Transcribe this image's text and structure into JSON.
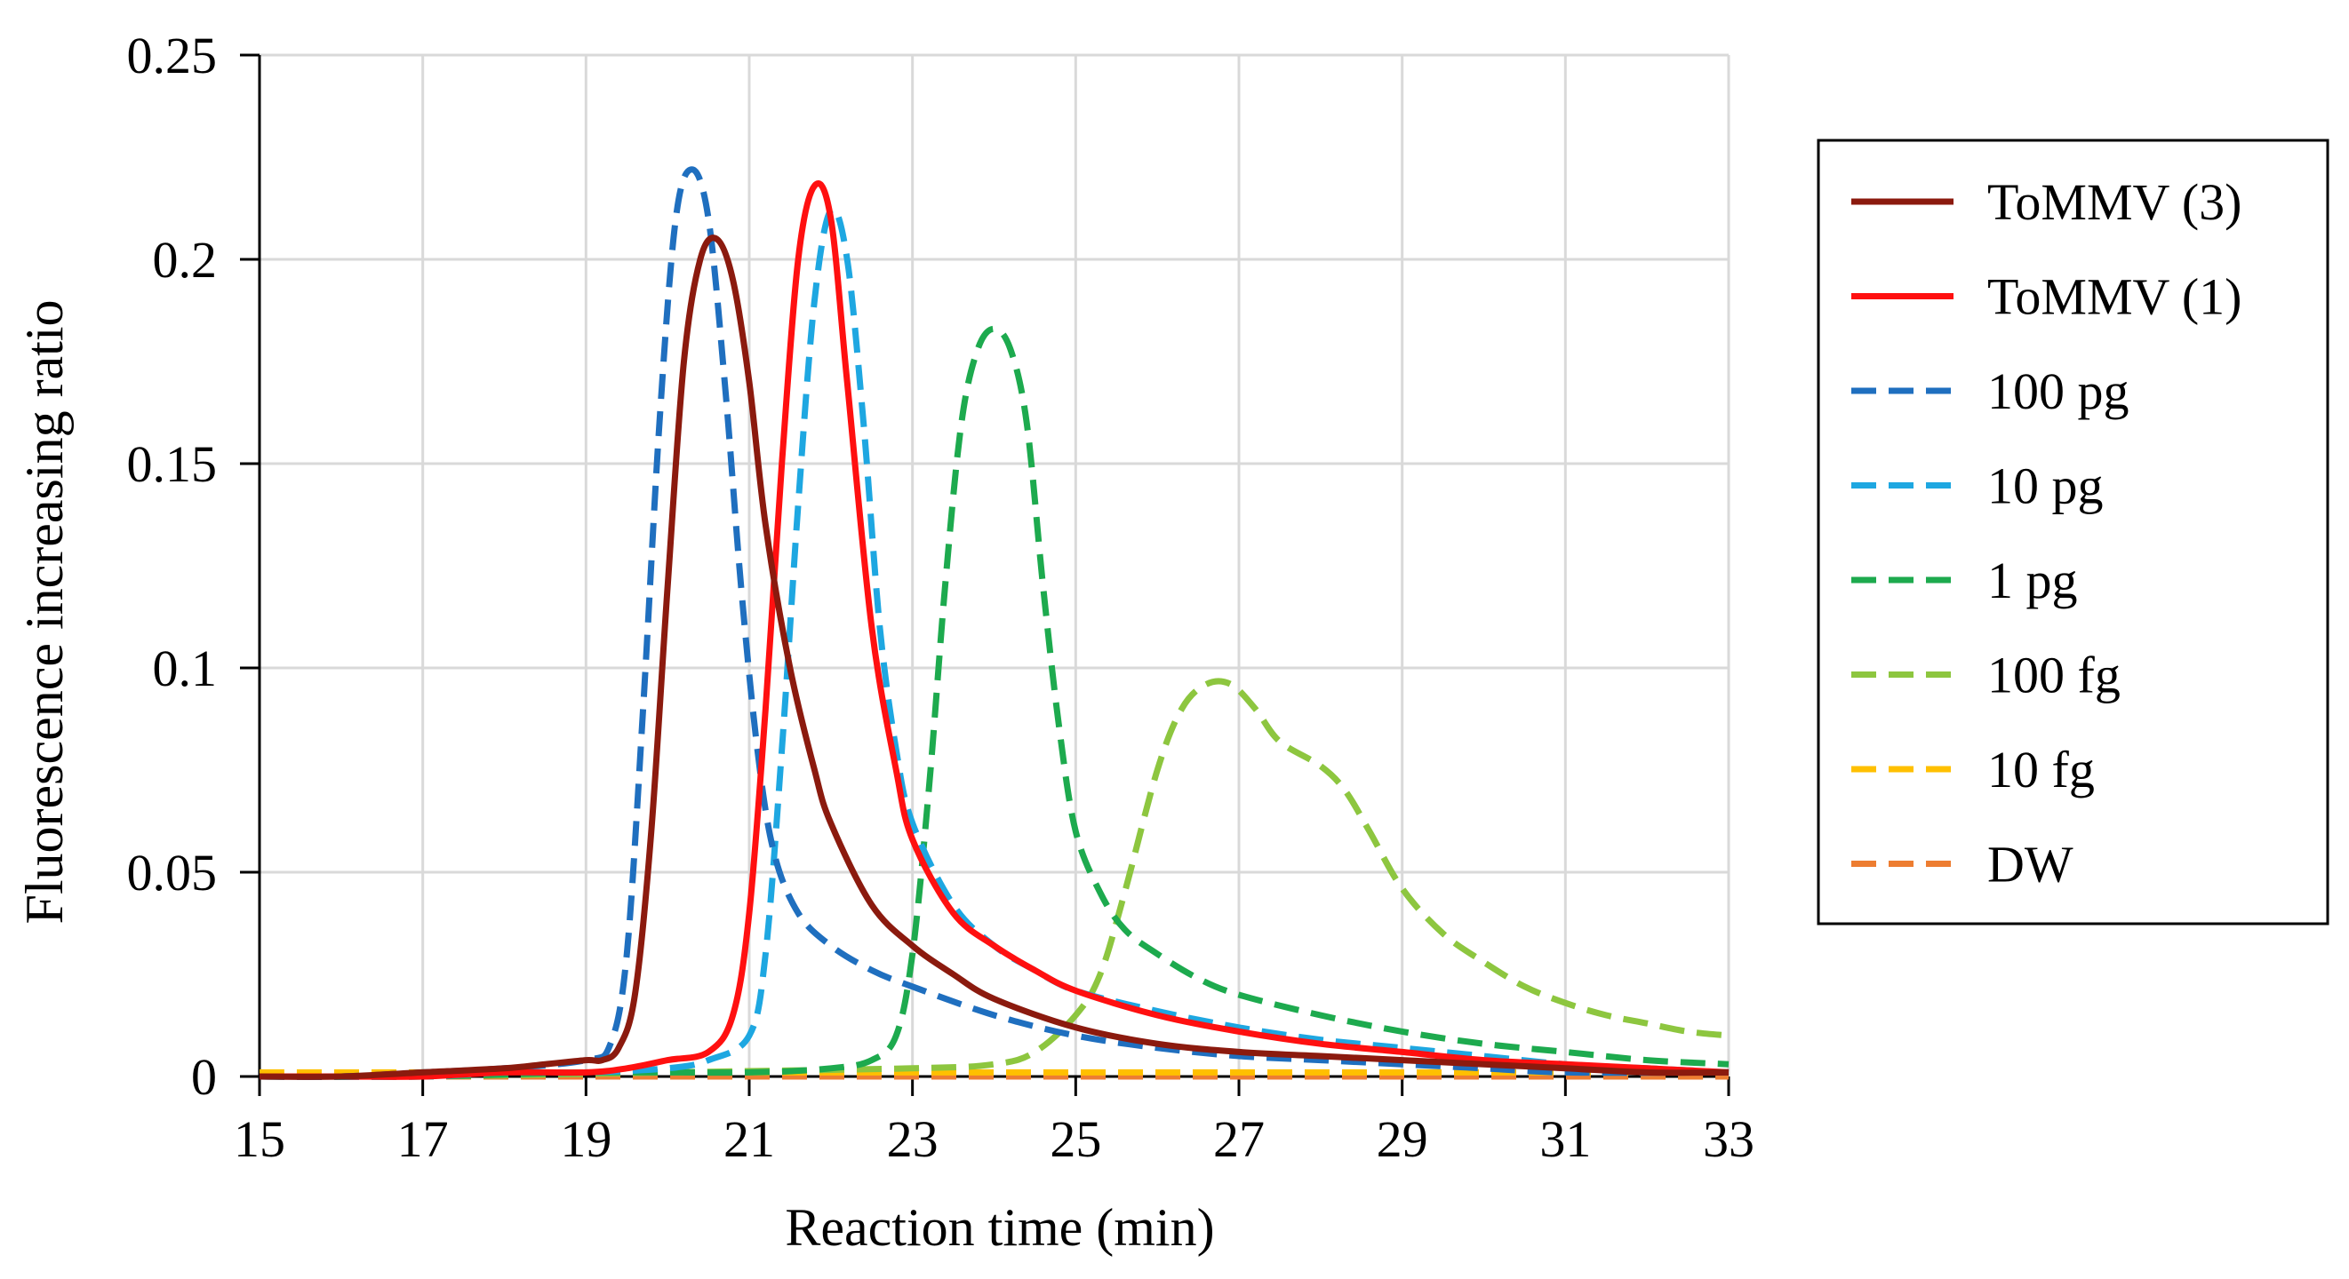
{
  "chart_data": {
    "type": "line",
    "title": "",
    "xlabel": "Reaction time (min)",
    "ylabel": "Fluorescence increasing ratio",
    "xlim": [
      15,
      33
    ],
    "ylim": [
      0,
      0.25
    ],
    "x_ticks": [
      15,
      17,
      19,
      21,
      23,
      25,
      27,
      29,
      31,
      33
    ],
    "x_tick_labels": [
      "15",
      "17",
      "19",
      "21",
      "23",
      "25",
      "27",
      "29",
      "31",
      "33"
    ],
    "y_ticks": [
      0,
      0.05,
      0.1,
      0.15,
      0.2,
      0.25
    ],
    "y_tick_labels": [
      "0",
      "0.05",
      "0.1",
      "0.15",
      "0.2",
      "0.25"
    ],
    "grid": true,
    "legend_position": "right",
    "series": [
      {
        "name": "ToMMV (3)",
        "color": "#8B1A0E",
        "style": "solid",
        "points": [
          [
            15,
            0
          ],
          [
            16,
            0
          ],
          [
            17,
            0.001
          ],
          [
            18,
            0.002
          ],
          [
            18.5,
            0.003
          ],
          [
            19,
            0.004
          ],
          [
            19.2,
            0.004
          ],
          [
            19.4,
            0.007
          ],
          [
            19.6,
            0.02
          ],
          [
            19.8,
            0.06
          ],
          [
            20,
            0.12
          ],
          [
            20.2,
            0.175
          ],
          [
            20.4,
            0.2
          ],
          [
            20.6,
            0.205
          ],
          [
            20.8,
            0.195
          ],
          [
            21,
            0.17
          ],
          [
            21.2,
            0.135
          ],
          [
            21.5,
            0.1
          ],
          [
            21.8,
            0.075
          ],
          [
            22,
            0.062
          ],
          [
            22.5,
            0.042
          ],
          [
            23,
            0.032
          ],
          [
            23.5,
            0.025
          ],
          [
            24,
            0.019
          ],
          [
            25,
            0.012
          ],
          [
            26,
            0.008
          ],
          [
            27,
            0.006
          ],
          [
            28,
            0.005
          ],
          [
            29,
            0.004
          ],
          [
            30,
            0.003
          ],
          [
            31,
            0.002
          ],
          [
            32,
            0.001
          ],
          [
            33,
            0.001
          ]
        ]
      },
      {
        "name": "ToMMV (1)",
        "color": "#FF1010",
        "style": "solid",
        "points": [
          [
            15,
            0
          ],
          [
            16,
            0
          ],
          [
            17,
            0
          ],
          [
            18,
            0.001
          ],
          [
            19,
            0.001
          ],
          [
            19.5,
            0.002
          ],
          [
            20,
            0.004
          ],
          [
            20.5,
            0.006
          ],
          [
            20.8,
            0.015
          ],
          [
            21,
            0.04
          ],
          [
            21.2,
            0.09
          ],
          [
            21.4,
            0.15
          ],
          [
            21.6,
            0.2
          ],
          [
            21.8,
            0.218
          ],
          [
            22,
            0.21
          ],
          [
            22.2,
            0.17
          ],
          [
            22.5,
            0.11
          ],
          [
            22.8,
            0.075
          ],
          [
            23,
            0.058
          ],
          [
            23.5,
            0.04
          ],
          [
            24,
            0.032
          ],
          [
            24.5,
            0.026
          ],
          [
            25,
            0.021
          ],
          [
            26,
            0.015
          ],
          [
            27,
            0.011
          ],
          [
            28,
            0.008
          ],
          [
            29,
            0.006
          ],
          [
            30,
            0.004
          ],
          [
            31,
            0.003
          ],
          [
            32,
            0.002
          ],
          [
            33,
            0.001
          ]
        ]
      },
      {
        "name": "100 pg",
        "color": "#1F6FBF",
        "style": "dashed",
        "points": [
          [
            15,
            0
          ],
          [
            16,
            0
          ],
          [
            17,
            0.001
          ],
          [
            18,
            0.002
          ],
          [
            19,
            0.004
          ],
          [
            19.3,
            0.008
          ],
          [
            19.5,
            0.03
          ],
          [
            19.7,
            0.09
          ],
          [
            19.9,
            0.16
          ],
          [
            20.1,
            0.21
          ],
          [
            20.3,
            0.222
          ],
          [
            20.5,
            0.21
          ],
          [
            20.7,
            0.17
          ],
          [
            20.9,
            0.12
          ],
          [
            21.1,
            0.08
          ],
          [
            21.3,
            0.055
          ],
          [
            21.6,
            0.04
          ],
          [
            22,
            0.032
          ],
          [
            22.5,
            0.026
          ],
          [
            23,
            0.022
          ],
          [
            24,
            0.015
          ],
          [
            25,
            0.01
          ],
          [
            26,
            0.007
          ],
          [
            27,
            0.005
          ],
          [
            28,
            0.004
          ],
          [
            29,
            0.003
          ],
          [
            30,
            0.002
          ],
          [
            31,
            0.001
          ],
          [
            33,
            0.001
          ]
        ]
      },
      {
        "name": "10 pg",
        "color": "#1EA7E1",
        "style": "dashed",
        "points": [
          [
            15,
            0
          ],
          [
            17,
            0
          ],
          [
            18,
            0.001
          ],
          [
            19,
            0.001
          ],
          [
            20,
            0.002
          ],
          [
            20.5,
            0.004
          ],
          [
            21,
            0.01
          ],
          [
            21.2,
            0.03
          ],
          [
            21.4,
            0.08
          ],
          [
            21.6,
            0.14
          ],
          [
            21.8,
            0.19
          ],
          [
            22,
            0.212
          ],
          [
            22.2,
            0.2
          ],
          [
            22.4,
            0.16
          ],
          [
            22.6,
            0.11
          ],
          [
            22.8,
            0.08
          ],
          [
            23,
            0.062
          ],
          [
            23.5,
            0.042
          ],
          [
            24,
            0.032
          ],
          [
            24.5,
            0.026
          ],
          [
            25,
            0.021
          ],
          [
            26,
            0.016
          ],
          [
            27,
            0.012
          ],
          [
            28,
            0.009
          ],
          [
            29,
            0.007
          ],
          [
            30,
            0.005
          ],
          [
            31,
            0.003
          ],
          [
            32,
            0.002
          ],
          [
            33,
            0.001
          ]
        ]
      },
      {
        "name": "1 pg",
        "color": "#1DAA4E",
        "style": "dashed",
        "points": [
          [
            15,
            0
          ],
          [
            17,
            0
          ],
          [
            19,
            0.001
          ],
          [
            21,
            0.001
          ],
          [
            22,
            0.002
          ],
          [
            22.5,
            0.004
          ],
          [
            22.8,
            0.01
          ],
          [
            23,
            0.03
          ],
          [
            23.2,
            0.07
          ],
          [
            23.4,
            0.12
          ],
          [
            23.6,
            0.16
          ],
          [
            23.8,
            0.178
          ],
          [
            24,
            0.183
          ],
          [
            24.2,
            0.178
          ],
          [
            24.4,
            0.16
          ],
          [
            24.6,
            0.12
          ],
          [
            24.8,
            0.085
          ],
          [
            25,
            0.06
          ],
          [
            25.3,
            0.045
          ],
          [
            25.6,
            0.036
          ],
          [
            26,
            0.03
          ],
          [
            26.5,
            0.024
          ],
          [
            27,
            0.02
          ],
          [
            28,
            0.015
          ],
          [
            29,
            0.011
          ],
          [
            30,
            0.008
          ],
          [
            31,
            0.006
          ],
          [
            32,
            0.004
          ],
          [
            33,
            0.003
          ]
        ]
      },
      {
        "name": "100 fg",
        "color": "#8DC63F",
        "style": "dashed",
        "points": [
          [
            15,
            0
          ],
          [
            17,
            0
          ],
          [
            20,
            0.001
          ],
          [
            23,
            0.002
          ],
          [
            24,
            0.003
          ],
          [
            24.5,
            0.006
          ],
          [
            25,
            0.015
          ],
          [
            25.3,
            0.025
          ],
          [
            25.6,
            0.045
          ],
          [
            26,
            0.075
          ],
          [
            26.3,
            0.09
          ],
          [
            26.6,
            0.096
          ],
          [
            26.9,
            0.096
          ],
          [
            27.2,
            0.09
          ],
          [
            27.5,
            0.082
          ],
          [
            28,
            0.076
          ],
          [
            28.3,
            0.07
          ],
          [
            28.6,
            0.06
          ],
          [
            29,
            0.046
          ],
          [
            29.5,
            0.035
          ],
          [
            30,
            0.028
          ],
          [
            30.5,
            0.022
          ],
          [
            31,
            0.018
          ],
          [
            31.5,
            0.015
          ],
          [
            32,
            0.013
          ],
          [
            32.5,
            0.011
          ],
          [
            33,
            0.01
          ]
        ]
      },
      {
        "name": "10 fg",
        "color": "#FFC000",
        "style": "dashed",
        "points": [
          [
            15,
            0.001
          ],
          [
            17,
            0.001
          ],
          [
            19,
            0.001
          ],
          [
            21,
            0.001
          ],
          [
            23,
            0.001
          ],
          [
            25,
            0.001
          ],
          [
            27,
            0.001
          ],
          [
            29,
            0.001
          ],
          [
            31,
            0.001
          ],
          [
            33,
            0.001
          ]
        ]
      },
      {
        "name": "DW",
        "color": "#ED7D31",
        "style": "dashed",
        "points": [
          [
            15,
            0
          ],
          [
            17,
            0
          ],
          [
            19,
            0
          ],
          [
            21,
            0
          ],
          [
            23,
            0
          ],
          [
            25,
            0
          ],
          [
            27,
            0
          ],
          [
            29,
            0
          ],
          [
            31,
            0
          ],
          [
            33,
            0
          ]
        ]
      }
    ]
  }
}
